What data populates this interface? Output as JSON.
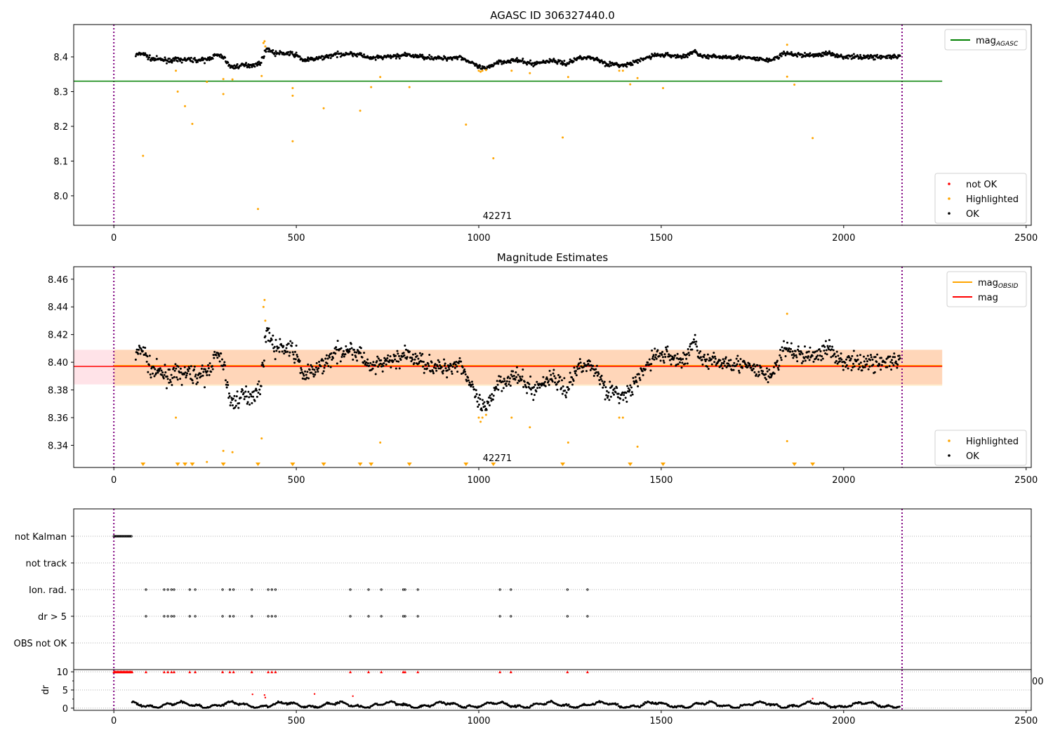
{
  "chart_data": [
    {
      "type": "scatter",
      "title": "AGASC ID 306327440.0",
      "xlim": [
        -110,
        2514
      ],
      "ylim": [
        7.915,
        8.493
      ],
      "xticks": [
        "0",
        "500",
        "1000",
        "1500",
        "2000",
        "2500"
      ],
      "xtick_values": [
        0,
        500,
        1000,
        1500,
        2000,
        2500
      ],
      "yticks": [
        "8.0",
        "8.1",
        "8.2",
        "8.3",
        "8.4"
      ],
      "ytick_values": [
        8.0,
        8.1,
        8.2,
        8.3,
        8.4
      ],
      "annotation": "42271",
      "annotation_x": 1040,
      "obs_bounds": [
        0,
        2160
      ],
      "mag_agasc": 8.33,
      "mag_agasc_range": [
        -110,
        2270
      ],
      "legend_upper": [
        {
          "label": "mag",
          "sub": "AGASC",
          "color": "#008000"
        }
      ],
      "legend_lower": [
        {
          "label": "not OK",
          "color": "#ff0000"
        },
        {
          "label": "Highlighted",
          "color": "#ffa500"
        },
        {
          "label": "OK",
          "color": "#000000"
        }
      ]
    },
    {
      "type": "scatter",
      "title": "Magnitude Estimates",
      "xlim": [
        -110,
        2514
      ],
      "ylim": [
        8.324,
        8.469
      ],
      "xticks": [
        "0",
        "500",
        "1000",
        "1500",
        "2000",
        "2500"
      ],
      "xtick_values": [
        0,
        500,
        1000,
        1500,
        2000,
        2500
      ],
      "yticks": [
        "8.34",
        "8.36",
        "8.38",
        "8.40",
        "8.42",
        "8.44",
        "8.46"
      ],
      "ytick_values": [
        8.34,
        8.36,
        8.38,
        8.4,
        8.42,
        8.44,
        8.46
      ],
      "annotation": "42271",
      "annotation_x": 1040,
      "mag_obsid": 8.397,
      "mag": 8.397,
      "band": [
        8.384,
        8.409
      ],
      "legend_upper": [
        {
          "label": "mag",
          "sub": "OBSID",
          "color": "#ffa500"
        },
        {
          "label": "mag",
          "sub": "",
          "color": "#ff0000"
        }
      ],
      "legend_lower": [
        {
          "label": "Highlighted",
          "color": "#ffa500"
        },
        {
          "label": "OK",
          "color": "#000000"
        }
      ]
    },
    {
      "type": "scatter",
      "categories": [
        "not Kalman",
        "not track",
        "Ion. rad.",
        "dr > 5",
        "OBS not OK"
      ],
      "flag_times": [
        88,
        138,
        148,
        158,
        165,
        208,
        223,
        298,
        318,
        328,
        378,
        423,
        433,
        443,
        648,
        698,
        733,
        793,
        798,
        833,
        1058,
        1088,
        1243,
        1298
      ],
      "not_kalman_range": [
        0,
        50
      ],
      "ylabel": "dr",
      "dr_yticks": [
        "0",
        "5",
        "10"
      ],
      "dr_ytick_values": [
        0,
        5,
        10
      ],
      "dr_ylim": [
        -0.6,
        10.6
      ],
      "xticks": [
        "0",
        "500",
        "1000",
        "1500",
        "2000",
        "2500"
      ],
      "xtick_values": [
        0,
        500,
        1000,
        1500,
        2000,
        2500
      ],
      "overflow_label": "00",
      "dr_outliers": [
        [
          380,
          3.8
        ],
        [
          413,
          3.6
        ],
        [
          415,
          2.9
        ],
        [
          550,
          3.9
        ],
        [
          655,
          3.3
        ],
        [
          1915,
          2.6
        ]
      ]
    }
  ],
  "ok_trend": {
    "t": [
      60,
      80,
      100,
      150,
      200,
      250,
      280,
      300,
      320,
      350,
      380,
      400,
      420,
      440,
      480,
      500,
      520,
      560,
      600,
      640,
      680,
      700,
      750,
      800,
      850,
      900,
      950,
      1000,
      1020,
      1050,
      1100,
      1150,
      1200,
      1240,
      1280,
      1320,
      1350,
      1400,
      1430,
      1480,
      1520,
      1560,
      1590,
      1620,
      1700,
      1750,
      1800,
      1840,
      1880,
      1920,
      1960,
      2000,
      2050,
      2100,
      2155
    ],
    "mag": [
      8.405,
      8.41,
      8.395,
      8.39,
      8.392,
      8.39,
      8.405,
      8.4,
      8.37,
      8.375,
      8.377,
      8.38,
      8.425,
      8.41,
      8.41,
      8.405,
      8.39,
      8.395,
      8.405,
      8.41,
      8.405,
      8.395,
      8.4,
      8.405,
      8.4,
      8.395,
      8.4,
      8.37,
      8.365,
      8.385,
      8.39,
      8.38,
      8.39,
      8.38,
      8.4,
      8.395,
      8.38,
      8.375,
      8.385,
      8.405,
      8.405,
      8.4,
      8.415,
      8.4,
      8.4,
      8.395,
      8.39,
      8.41,
      8.405,
      8.405,
      8.41,
      8.4,
      8.4,
      8.4,
      8.4
    ]
  },
  "highlighted": [
    [
      80,
      8.115
    ],
    [
      170,
      8.36
    ],
    [
      175,
      8.3
    ],
    [
      195,
      8.258
    ],
    [
      215,
      8.207
    ],
    [
      255,
      8.328
    ],
    [
      300,
      8.336
    ],
    [
      300,
      8.293
    ],
    [
      325,
      8.335
    ],
    [
      395,
      7.962
    ],
    [
      405,
      8.345
    ],
    [
      410,
      8.44
    ],
    [
      413,
      8.445
    ],
    [
      415,
      8.43
    ],
    [
      490,
      8.31
    ],
    [
      490,
      8.288
    ],
    [
      490,
      8.157
    ],
    [
      575,
      8.252
    ],
    [
      675,
      8.245
    ],
    [
      705,
      8.313
    ],
    [
      730,
      8.342
    ],
    [
      810,
      8.313
    ],
    [
      965,
      8.205
    ],
    [
      1000,
      8.36
    ],
    [
      1005,
      8.357
    ],
    [
      1010,
      8.36
    ],
    [
      1020,
      8.362
    ],
    [
      1040,
      8.108
    ],
    [
      1090,
      8.36
    ],
    [
      1140,
      8.353
    ],
    [
      1230,
      8.168
    ],
    [
      1245,
      8.342
    ],
    [
      1385,
      8.36
    ],
    [
      1395,
      8.36
    ],
    [
      1415,
      8.321
    ],
    [
      1435,
      8.339
    ],
    [
      1505,
      8.31
    ],
    [
      1845,
      8.435
    ],
    [
      1845,
      8.343
    ],
    [
      1865,
      8.32
    ],
    [
      1915,
      8.166
    ]
  ]
}
